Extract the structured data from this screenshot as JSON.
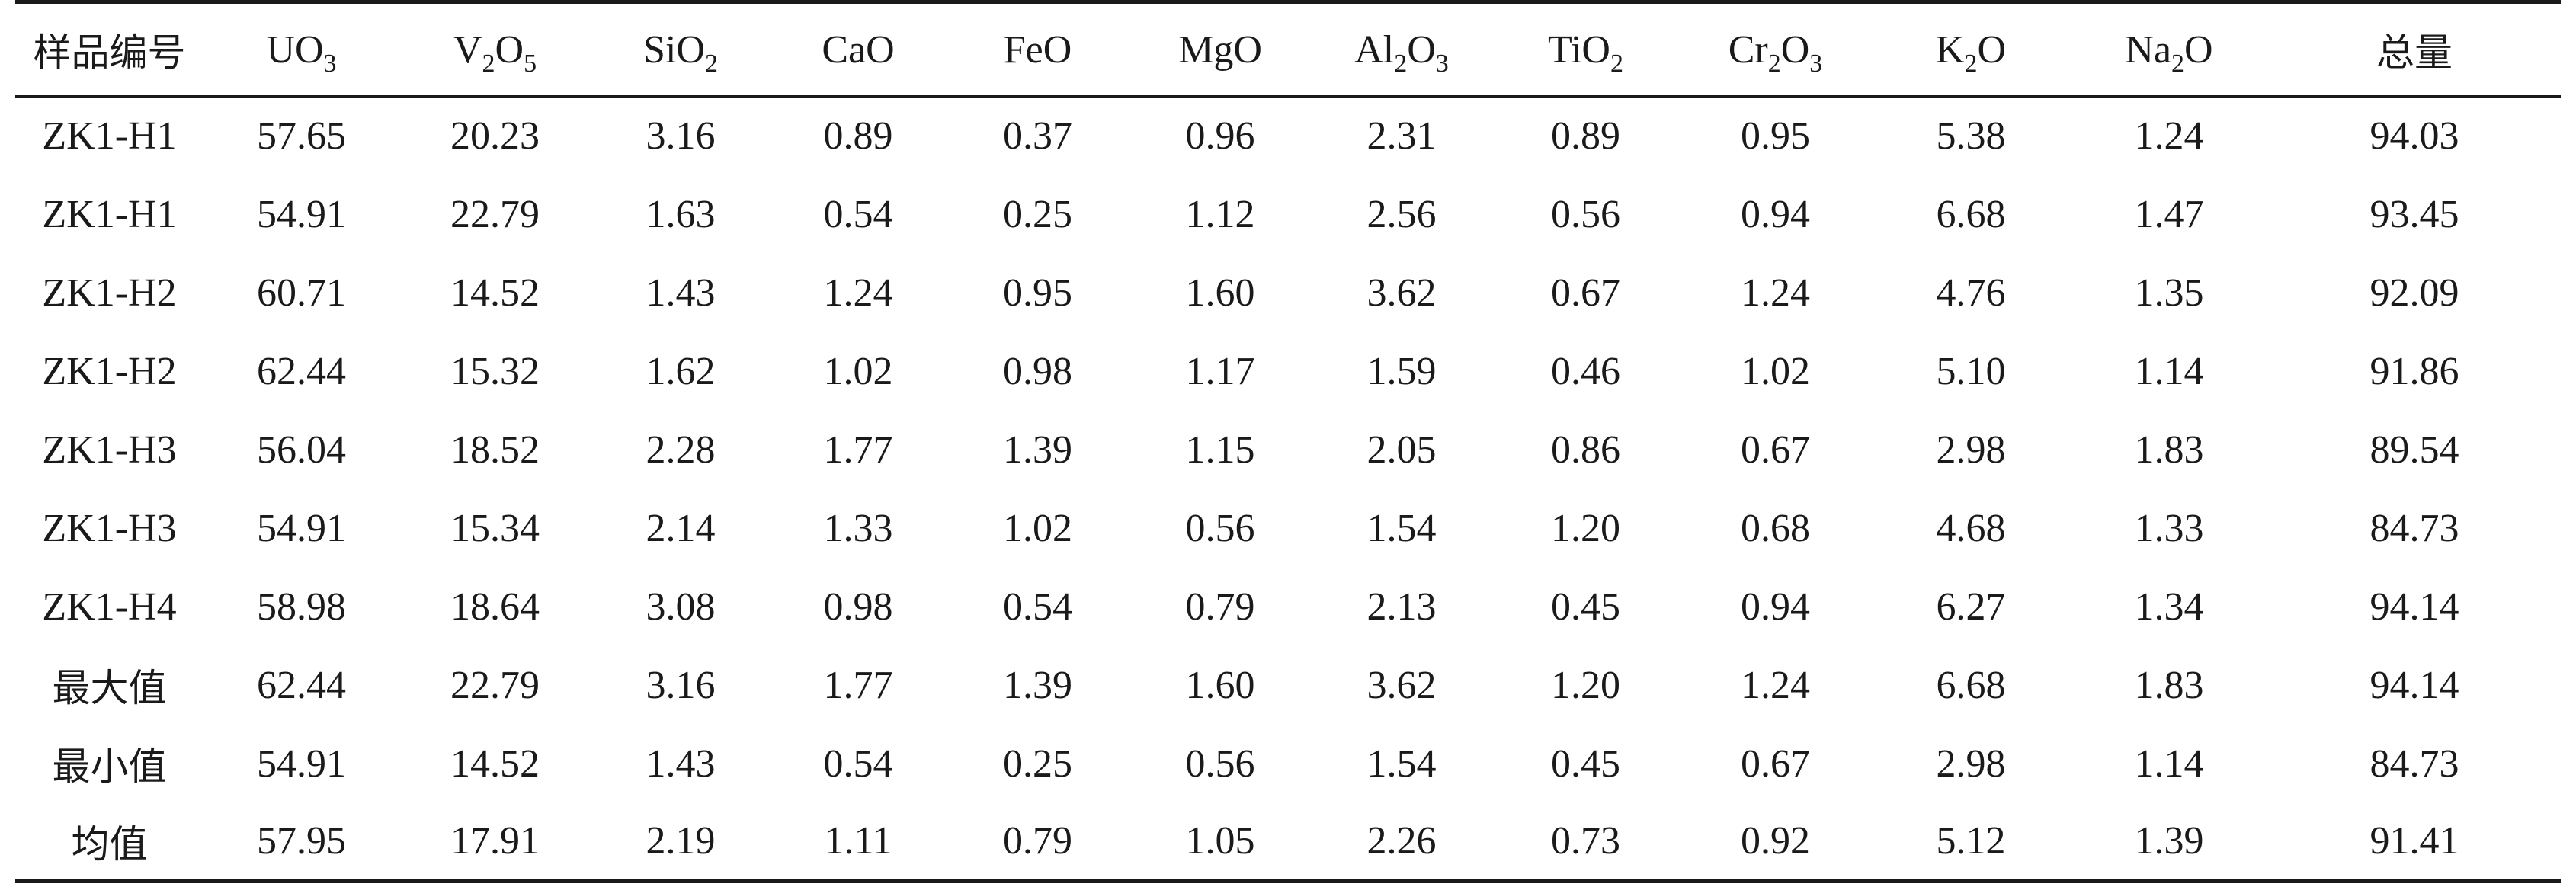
{
  "table": {
    "columns": [
      {
        "key": "sample",
        "parts": [
          {
            "t": "样品编号"
          }
        ]
      },
      {
        "key": "UO3",
        "parts": [
          {
            "t": "UO"
          },
          {
            "s": "3"
          }
        ]
      },
      {
        "key": "V2O5",
        "parts": [
          {
            "t": "V"
          },
          {
            "s": "2"
          },
          {
            "t": "O"
          },
          {
            "s": "5"
          }
        ]
      },
      {
        "key": "SiO2",
        "parts": [
          {
            "t": "SiO"
          },
          {
            "s": "2"
          }
        ]
      },
      {
        "key": "CaO",
        "parts": [
          {
            "t": "CaO"
          }
        ]
      },
      {
        "key": "FeO",
        "parts": [
          {
            "t": "FeO"
          }
        ]
      },
      {
        "key": "MgO",
        "parts": [
          {
            "t": "MgO"
          }
        ]
      },
      {
        "key": "Al2O3",
        "parts": [
          {
            "t": "Al"
          },
          {
            "s": "2"
          },
          {
            "t": "O"
          },
          {
            "s": "3"
          }
        ]
      },
      {
        "key": "TiO2",
        "parts": [
          {
            "t": "TiO"
          },
          {
            "s": "2"
          }
        ]
      },
      {
        "key": "Cr2O3",
        "parts": [
          {
            "t": "Cr"
          },
          {
            "s": "2"
          },
          {
            "t": "O"
          },
          {
            "s": "3"
          }
        ]
      },
      {
        "key": "K2O",
        "parts": [
          {
            "t": "K"
          },
          {
            "s": "2"
          },
          {
            "t": "O"
          }
        ]
      },
      {
        "key": "Na2O",
        "parts": [
          {
            "t": "Na"
          },
          {
            "s": "2"
          },
          {
            "t": "O"
          }
        ]
      },
      {
        "key": "total",
        "parts": [
          {
            "t": "总量"
          }
        ]
      }
    ],
    "rows": [
      [
        "ZK1-H1",
        "57.65",
        "20.23",
        "3.16",
        "0.89",
        "0.37",
        "0.96",
        "2.31",
        "0.89",
        "0.95",
        "5.38",
        "1.24",
        "94.03"
      ],
      [
        "ZK1-H1",
        "54.91",
        "22.79",
        "1.63",
        "0.54",
        "0.25",
        "1.12",
        "2.56",
        "0.56",
        "0.94",
        "6.68",
        "1.47",
        "93.45"
      ],
      [
        "ZK1-H2",
        "60.71",
        "14.52",
        "1.43",
        "1.24",
        "0.95",
        "1.60",
        "3.62",
        "0.67",
        "1.24",
        "4.76",
        "1.35",
        "92.09"
      ],
      [
        "ZK1-H2",
        "62.44",
        "15.32",
        "1.62",
        "1.02",
        "0.98",
        "1.17",
        "1.59",
        "0.46",
        "1.02",
        "5.10",
        "1.14",
        "91.86"
      ],
      [
        "ZK1-H3",
        "56.04",
        "18.52",
        "2.28",
        "1.77",
        "1.39",
        "1.15",
        "2.05",
        "0.86",
        "0.67",
        "2.98",
        "1.83",
        "89.54"
      ],
      [
        "ZK1-H3",
        "54.91",
        "15.34",
        "2.14",
        "1.33",
        "1.02",
        "0.56",
        "1.54",
        "1.20",
        "0.68",
        "4.68",
        "1.33",
        "84.73"
      ],
      [
        "ZK1-H4",
        "58.98",
        "18.64",
        "3.08",
        "0.98",
        "0.54",
        "0.79",
        "2.13",
        "0.45",
        "0.94",
        "6.27",
        "1.34",
        "94.14"
      ],
      [
        "最大值",
        "62.44",
        "22.79",
        "3.16",
        "1.77",
        "1.39",
        "1.60",
        "3.62",
        "1.20",
        "1.24",
        "6.68",
        "1.83",
        "94.14"
      ],
      [
        "最小值",
        "54.91",
        "14.52",
        "1.43",
        "0.54",
        "0.25",
        "0.56",
        "1.54",
        "0.45",
        "0.67",
        "2.98",
        "1.14",
        "84.73"
      ],
      [
        "均值",
        "57.95",
        "17.91",
        "2.19",
        "1.11",
        "0.79",
        "1.05",
        "2.26",
        "0.73",
        "0.92",
        "5.12",
        "1.39",
        "91.41"
      ]
    ]
  }
}
